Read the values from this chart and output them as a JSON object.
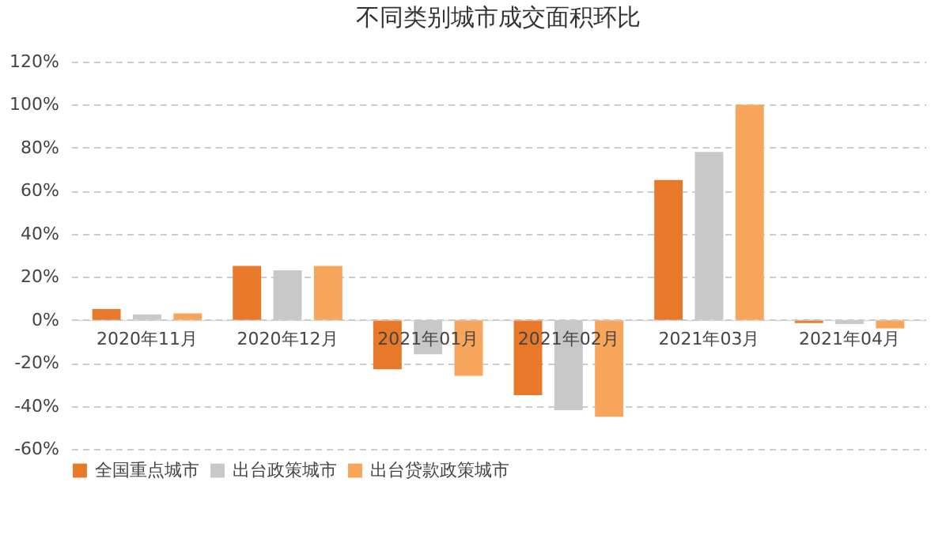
{
  "chart_data": {
    "type": "bar",
    "title": "不同类别城市成交面积环比",
    "categories": [
      "2020年11月",
      "2020年12月",
      "2021年01月",
      "2021年02月",
      "2021年03月",
      "2021年04月"
    ],
    "series": [
      {
        "name": "全国重点城市",
        "color": "#e8792b",
        "values": [
          5,
          25,
          -23,
          -35,
          65,
          -1.5
        ]
      },
      {
        "name": "出台政策城市",
        "color": "#c8c8c8",
        "values": [
          2.5,
          23,
          -16,
          -42,
          78,
          -2
        ]
      },
      {
        "name": "出台贷款政策城市",
        "color": "#f7a55a",
        "values": [
          3,
          25,
          -26,
          -45,
          100,
          -4
        ]
      }
    ],
    "ylim": [
      -60,
      120
    ],
    "yticks": [
      {
        "value": -60,
        "label": "-60%"
      },
      {
        "value": -40,
        "label": "-40%"
      },
      {
        "value": -20,
        "label": "-20%"
      },
      {
        "value": 0,
        "label": "0%"
      },
      {
        "value": 20,
        "label": "20%"
      },
      {
        "value": 40,
        "label": "40%"
      },
      {
        "value": 60,
        "label": "60%"
      },
      {
        "value": 80,
        "label": "80%"
      },
      {
        "value": 100,
        "label": "100%"
      },
      {
        "value": 120,
        "label": "120%"
      }
    ],
    "grid": "y",
    "legend": "bottom"
  }
}
